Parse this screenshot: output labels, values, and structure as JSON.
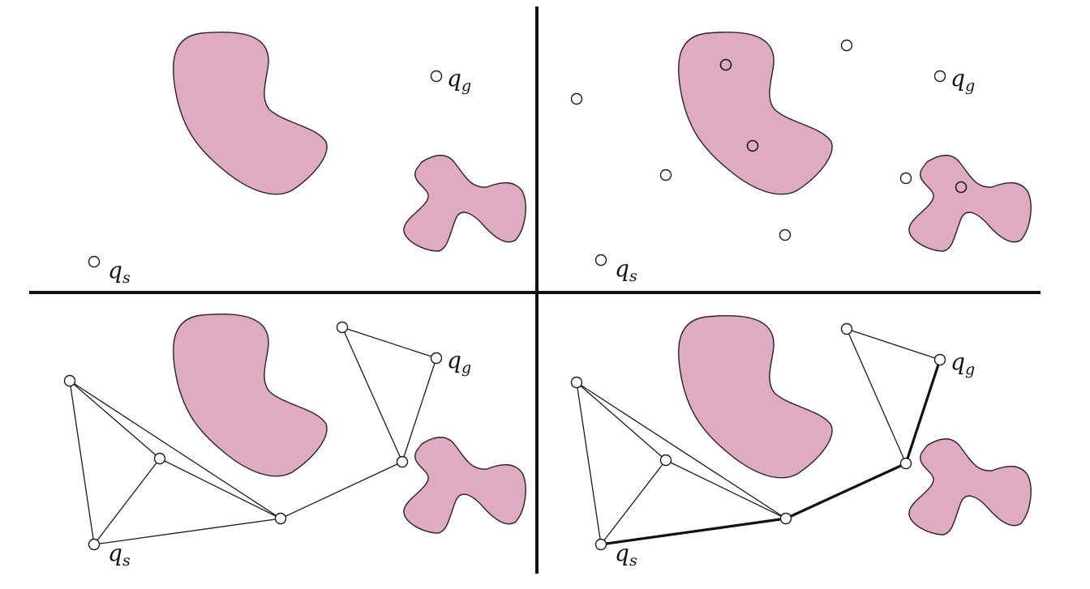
{
  "colors": {
    "obstacle_fill": "#deabc1",
    "rejected_sample_stroke": "#b0205f"
  },
  "labels": {
    "start": {
      "main": "q",
      "sub": "s"
    },
    "goal": {
      "main": "q",
      "sub": "g"
    }
  },
  "panels": [
    {
      "id": "free-space"
    },
    {
      "id": "sampling"
    },
    {
      "id": "roadmap"
    },
    {
      "id": "path"
    }
  ]
}
